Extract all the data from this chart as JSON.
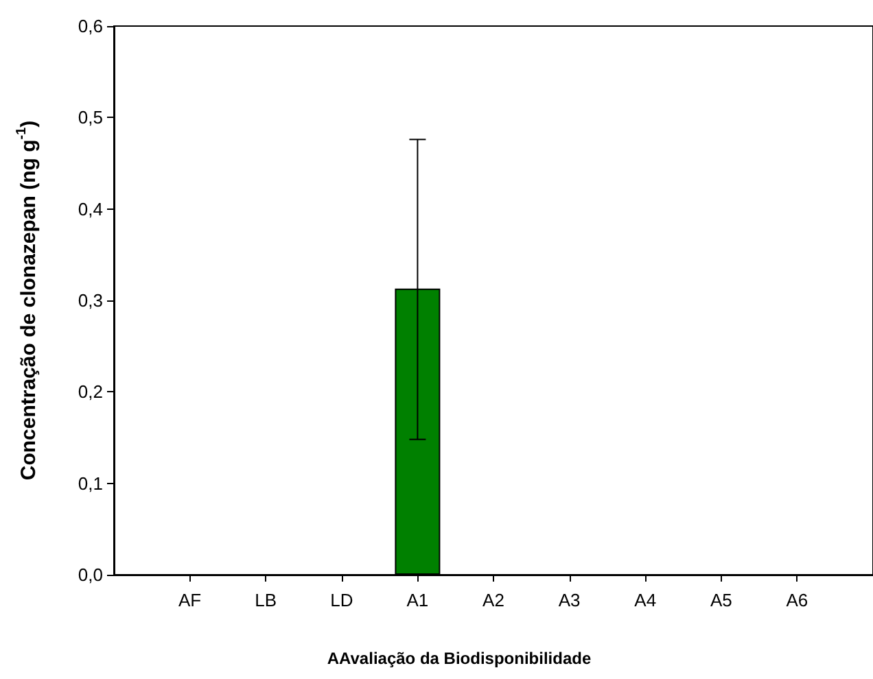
{
  "chart_data": {
    "type": "bar",
    "xlabel": "AAvaliação da Biodisponibilidade",
    "ylabel": "Concentração de clonazepan (ng g$^{-1}$)",
    "categories": [
      "AF",
      "LB",
      "LD",
      "A1",
      "A2",
      "A3",
      "A4",
      "A5",
      "A6"
    ],
    "values": [
      0,
      0,
      0,
      0.313,
      0,
      0,
      0,
      0,
      0
    ],
    "errors": [
      null,
      null,
      null,
      [
        0.148,
        0.476
      ],
      null,
      null,
      null,
      null,
      null
    ],
    "color": "#008000",
    "ylim": [
      0,
      0.6
    ],
    "yticks": [
      {
        "value": 0,
        "label": "0,0"
      },
      {
        "value": 0.1,
        "label": "0,1"
      },
      {
        "value": 0.2,
        "label": "0,2"
      },
      {
        "value": 0.3,
        "label": "0,3"
      },
      {
        "value": 0.4,
        "label": "0,4"
      },
      {
        "value": 0.5,
        "label": "0,5"
      },
      {
        "value": 0.6,
        "label": "0,6"
      }
    ],
    "grid": false
  }
}
